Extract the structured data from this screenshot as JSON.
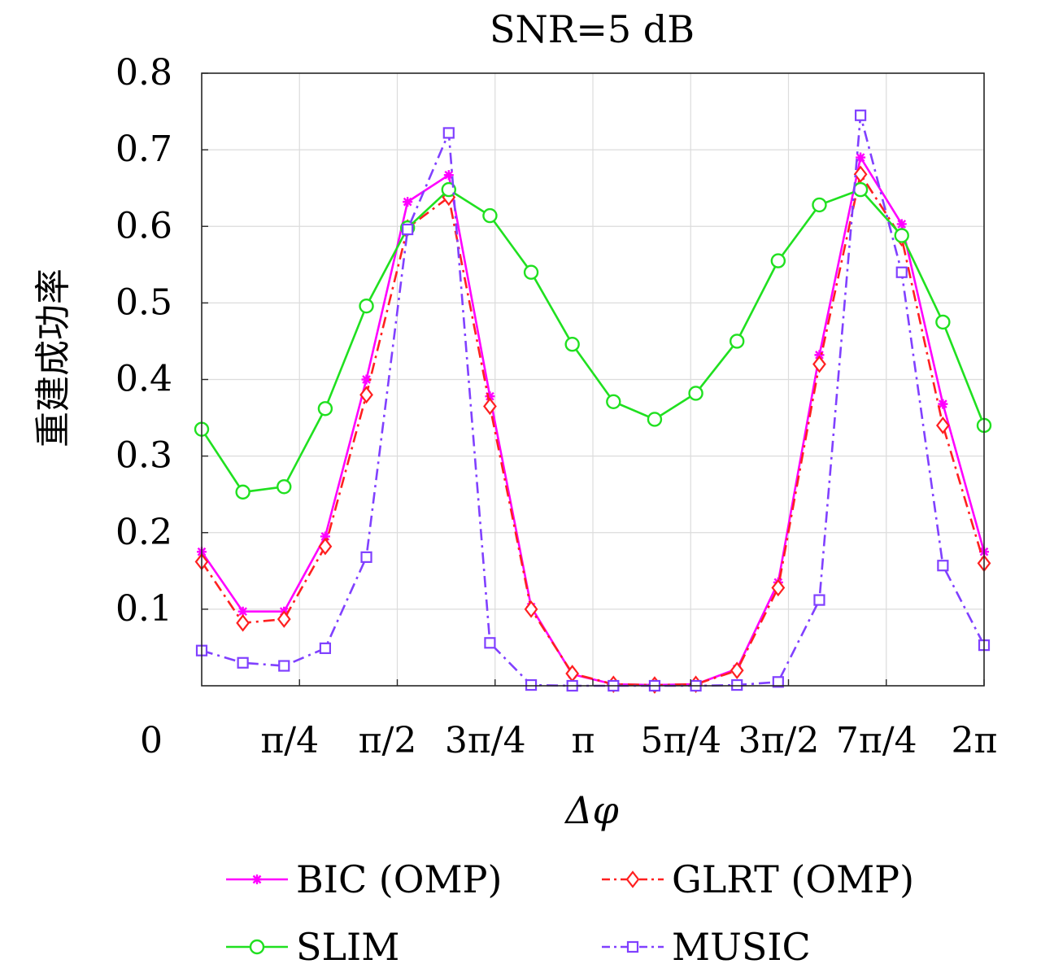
{
  "chart_data": {
    "type": "line",
    "title": "SNR=5 dB",
    "xlabel": "Δφ",
    "ylabel": "重建成功率",
    "xlim": [
      0,
      6.2832
    ],
    "ylim": [
      0,
      0.8
    ],
    "grid": true,
    "y_ticks": [
      {
        "value": 0,
        "label": "0"
      },
      {
        "value": 0.1,
        "label": "0.1"
      },
      {
        "value": 0.2,
        "label": "0.2"
      },
      {
        "value": 0.3,
        "label": "0.3"
      },
      {
        "value": 0.4,
        "label": "0.4"
      },
      {
        "value": 0.5,
        "label": "0.5"
      },
      {
        "value": 0.6,
        "label": "0.6"
      },
      {
        "value": 0.7,
        "label": "0.7"
      },
      {
        "value": 0.8,
        "label": "0.8"
      }
    ],
    "x_ticks": [
      {
        "value": 0.7854,
        "label": "π/4"
      },
      {
        "value": 1.5708,
        "label": "π/2"
      },
      {
        "value": 2.3562,
        "label": "3π/4"
      },
      {
        "value": 3.1416,
        "label": "π"
      },
      {
        "value": 3.927,
        "label": "5π/4"
      },
      {
        "value": 4.7124,
        "label": "3π/2"
      },
      {
        "value": 5.4978,
        "label": "7π/4"
      },
      {
        "value": 6.2832,
        "label": "2π"
      }
    ],
    "x": [
      0,
      0.3307,
      0.6614,
      0.9921,
      1.3228,
      1.6535,
      1.9842,
      2.3149,
      2.6456,
      2.9762,
      3.3069,
      3.6376,
      3.9683,
      4.299,
      4.6297,
      4.9604,
      5.2911,
      5.6218,
      5.9525,
      6.2832
    ],
    "series": [
      {
        "name": "BIC (OMP)",
        "color": "#ff00ff",
        "dash": "solid",
        "marker": "asterisk",
        "values": [
          0.175,
          0.097,
          0.097,
          0.195,
          0.4,
          0.632,
          0.667,
          0.378,
          0.103,
          0.015,
          0.002,
          0.001,
          0.002,
          0.022,
          0.135,
          0.432,
          0.69,
          0.603,
          0.368,
          0.175
        ]
      },
      {
        "name": "GLRT (OMP)",
        "color": "#ff2020",
        "dash": "dashdot",
        "marker": "diamond",
        "values": [
          0.162,
          0.082,
          0.087,
          0.182,
          0.38,
          0.598,
          0.638,
          0.365,
          0.1,
          0.016,
          0.002,
          0.001,
          0.002,
          0.02,
          0.128,
          0.42,
          0.668,
          0.585,
          0.34,
          0.16
        ]
      },
      {
        "name": "SLIM",
        "color": "#20e020",
        "dash": "solid",
        "marker": "circle",
        "values": [
          0.335,
          0.253,
          0.26,
          0.362,
          0.496,
          0.598,
          0.648,
          0.614,
          0.54,
          0.446,
          0.371,
          0.348,
          0.382,
          0.45,
          0.555,
          0.628,
          0.648,
          0.588,
          0.475,
          0.34
        ]
      },
      {
        "name": "MUSIC",
        "color": "#8040ff",
        "dash": "dashdot",
        "marker": "square",
        "values": [
          0.046,
          0.03,
          0.026,
          0.049,
          0.168,
          0.596,
          0.722,
          0.056,
          0.001,
          0.0,
          0.0,
          0.0,
          0.0,
          0.001,
          0.005,
          0.112,
          0.745,
          0.54,
          0.157,
          0.053
        ]
      }
    ],
    "legend": "bottom"
  }
}
